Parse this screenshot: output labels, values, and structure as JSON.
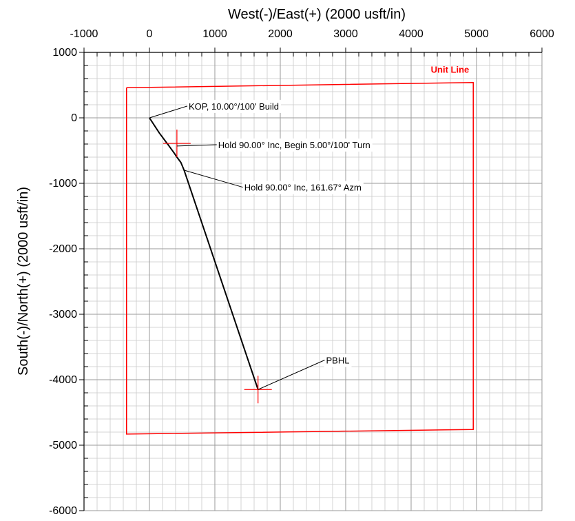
{
  "chart_data": {
    "type": "scatter",
    "xlabel": "West(-)/East(+) (2000 usft/in)",
    "ylabel": "South(-)/North(+) (2000 usft/in)",
    "xlim": [
      -1000,
      6000
    ],
    "ylim": [
      -6000,
      1000
    ],
    "x_tick_labels": [
      "-1000",
      "0",
      "1000",
      "2000",
      "3000",
      "4000",
      "5000",
      "6000"
    ],
    "x_tick_values": [
      -1000,
      0,
      1000,
      2000,
      3000,
      4000,
      5000,
      6000
    ],
    "y_tick_labels": [
      "1000",
      "0",
      "-1000",
      "-2000",
      "-3000",
      "-4000",
      "-5000",
      "-6000"
    ],
    "y_tick_values": [
      1000,
      0,
      -1000,
      -2000,
      -3000,
      -4000,
      -5000,
      -6000
    ],
    "grid": true,
    "series": [
      {
        "name": "",
        "color": "#000000",
        "x": [
          0,
          150,
          300,
          380,
          420,
          480,
          530,
          1660
        ],
        "y": [
          0,
          -230,
          -430,
          -540,
          -600,
          -680,
          -800,
          -4150
        ]
      }
    ],
    "unit_line": {
      "label": "Unit Line",
      "color": "#ff0000",
      "x": [
        -350,
        4950,
        4950,
        -350,
        -350
      ],
      "y": [
        460,
        540,
        -4760,
        -4830,
        460
      ]
    },
    "targets": [
      {
        "x": 420,
        "y": -390,
        "color": "#ff0000"
      },
      {
        "x": 1660,
        "y": -4150,
        "color": "#ff0000"
      }
    ],
    "annotations": [
      {
        "text": "KOP, 10.00°/100' Build",
        "x": 0,
        "y": 0,
        "label_x": 600,
        "label_y": 180
      },
      {
        "text": "Hold 90.00° Inc, Begin 5.00°/100' Turn",
        "x": 420,
        "y": -430,
        "label_x": 1050,
        "label_y": -410
      },
      {
        "text": "Hold 90.00° Inc, 161.67° Azm",
        "x": 530,
        "y": -800,
        "label_x": 1450,
        "label_y": -1060
      },
      {
        "text": "PBHL",
        "x": 1660,
        "y": -4150,
        "label_x": 2700,
        "label_y": -3700
      }
    ]
  }
}
